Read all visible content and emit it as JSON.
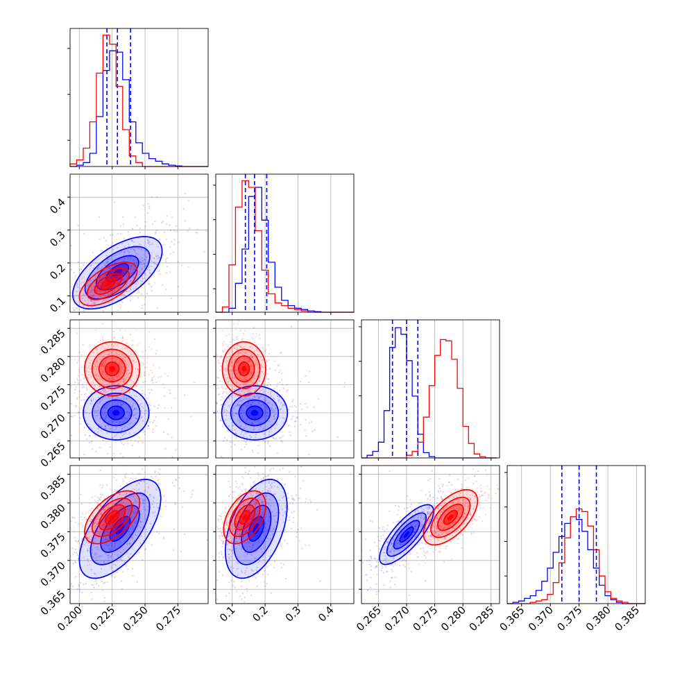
{
  "chart_data": {
    "type": "corner",
    "grid": true,
    "series": [
      {
        "color": "#0000ff",
        "mean": [
          0.229,
          0.17,
          0.27,
          0.375
        ]
      },
      {
        "color": "#ff0000",
        "mean": [
          0.224,
          0.14,
          0.278,
          0.378
        ]
      }
    ],
    "params": [
      {
        "range": [
          0.193,
          0.298
        ],
        "ticks": [
          0.2,
          0.225,
          0.25,
          0.275
        ],
        "tick_labels": [
          "0.200",
          "0.225",
          "0.250",
          "0.275"
        ]
      },
      {
        "range": [
          0.05,
          0.47
        ],
        "ticks": [
          0.1,
          0.2,
          0.3,
          0.4
        ],
        "tick_labels": [
          "0.1",
          "0.2",
          "0.3",
          "0.4"
        ]
      },
      {
        "range": [
          0.262,
          0.2865
        ],
        "ticks": [
          0.265,
          0.27,
          0.275,
          0.28,
          0.285
        ],
        "tick_labels": [
          "0.265",
          "0.270",
          "0.275",
          "0.280",
          "0.285"
        ]
      },
      {
        "range": [
          0.3625,
          0.3865
        ],
        "ticks": [
          0.365,
          0.37,
          0.375,
          0.38,
          0.385
        ],
        "tick_labels": [
          "0.365",
          "0.370",
          "0.375",
          "0.380",
          "0.385"
        ]
      }
    ],
    "quantiles": [
      [
        0.221,
        0.229,
        0.239
      ],
      [
        0.14,
        0.168,
        0.205
      ],
      [
        0.2675,
        0.27,
        0.272
      ],
      [
        0.372,
        0.375,
        0.378
      ]
    ],
    "histograms": [
      {
        "bins_x": [
          0.193,
          0.198,
          0.203,
          0.208,
          0.213,
          0.218,
          0.223,
          0.228,
          0.233,
          0.238,
          0.243,
          0.248,
          0.253,
          0.258,
          0.263,
          0.268,
          0.273,
          0.278,
          0.283,
          0.288,
          0.293,
          0.298
        ],
        "blue": [
          0.0,
          0.01,
          0.03,
          0.1,
          0.38,
          0.73,
          0.88,
          0.87,
          0.66,
          0.34,
          0.18,
          0.1,
          0.06,
          0.04,
          0.02,
          0.01,
          0.005,
          0.0,
          0.0,
          0.0,
          0.0
        ],
        "red": [
          0.02,
          0.05,
          0.14,
          0.34,
          0.71,
          1.0,
          0.93,
          0.61,
          0.28,
          0.08,
          0.03,
          0.0,
          0.0,
          0.0,
          0.0,
          0.0,
          0.0,
          0.0,
          0.0,
          0.0,
          0.0
        ]
      },
      {
        "bins_x": [
          0.05,
          0.07,
          0.09,
          0.11,
          0.13,
          0.15,
          0.17,
          0.19,
          0.21,
          0.23,
          0.25,
          0.27,
          0.29,
          0.31,
          0.33,
          0.35,
          0.37,
          0.39,
          0.41,
          0.43,
          0.45,
          0.47
        ],
        "blue": [
          0.0,
          0.0,
          0.03,
          0.22,
          0.48,
          0.88,
          0.95,
          0.7,
          0.38,
          0.19,
          0.09,
          0.05,
          0.03,
          0.02,
          0.01,
          0.005,
          0.0,
          0.0,
          0.0,
          0.0,
          0.0
        ],
        "red": [
          0.0,
          0.04,
          0.36,
          0.8,
          1.0,
          0.95,
          0.62,
          0.32,
          0.14,
          0.07,
          0.05,
          0.03,
          0.02,
          0.01,
          0.0,
          0.0,
          0.0,
          0.0,
          0.0,
          0.0,
          0.0
        ]
      },
      {
        "bins_x": [
          0.262,
          0.263,
          0.264,
          0.265,
          0.266,
          0.267,
          0.268,
          0.269,
          0.27,
          0.271,
          0.272,
          0.273,
          0.274,
          0.275,
          0.276,
          0.277,
          0.278,
          0.279,
          0.28,
          0.281,
          0.282,
          0.283,
          0.284,
          0.285,
          0.286
        ],
        "blue": [
          0.0,
          0.02,
          0.05,
          0.12,
          0.36,
          0.84,
          0.99,
          0.94,
          0.74,
          0.47,
          0.18,
          0.04,
          0.01,
          0.0,
          0.0,
          0.0,
          0.0,
          0.0,
          0.0,
          0.0,
          0.0,
          0.0,
          0.0,
          0.0
        ],
        "red": [
          0.0,
          0.0,
          0.0,
          0.0,
          0.0,
          0.0,
          0.0,
          0.0,
          0.02,
          0.05,
          0.12,
          0.31,
          0.55,
          0.78,
          0.9,
          0.89,
          0.75,
          0.53,
          0.24,
          0.11,
          0.03,
          0.01,
          0.0,
          0.0
        ]
      },
      {
        "bins_x": [
          0.3625,
          0.3635,
          0.3645,
          0.3655,
          0.3665,
          0.3675,
          0.3685,
          0.3695,
          0.3705,
          0.3715,
          0.3725,
          0.3735,
          0.3745,
          0.3755,
          0.3765,
          0.3775,
          0.3785,
          0.3795,
          0.3805,
          0.3815,
          0.3825,
          0.3835,
          0.3845,
          0.3855,
          0.3865
        ],
        "blue": [
          0.0,
          0.01,
          0.02,
          0.04,
          0.06,
          0.1,
          0.17,
          0.27,
          0.39,
          0.51,
          0.61,
          0.66,
          0.64,
          0.55,
          0.41,
          0.27,
          0.14,
          0.06,
          0.03,
          0.01,
          0.0,
          0.0,
          0.0,
          0.0
        ],
        "red": [
          0.0,
          0.0,
          0.0,
          0.0,
          0.01,
          0.02,
          0.03,
          0.07,
          0.16,
          0.31,
          0.5,
          0.66,
          0.72,
          0.7,
          0.59,
          0.41,
          0.21,
          0.09,
          0.04,
          0.02,
          0.01,
          0.0,
          0.0,
          0.0
        ]
      }
    ],
    "contours": [
      {
        "row": 1,
        "col": 0,
        "blue": {
          "c": [
            0.229,
            0.17
          ],
          "s": [
            0.017,
            0.055
          ],
          "rho": 0.6
        },
        "red": {
          "c": [
            0.222,
            0.136
          ],
          "s": [
            0.011,
            0.033
          ],
          "rho": 0.6
        }
      },
      {
        "row": 2,
        "col": 0,
        "blue": {
          "c": [
            0.228,
            0.27
          ],
          "s": [
            0.0125,
            0.0024
          ],
          "rho": 0.0
        },
        "red": {
          "c": [
            0.225,
            0.2778
          ],
          "s": [
            0.0105,
            0.0024
          ],
          "rho": 0.0
        }
      },
      {
        "row": 2,
        "col": 1,
        "blue": {
          "c": [
            0.168,
            0.27
          ],
          "s": [
            0.05,
            0.0024
          ],
          "rho": 0.0
        },
        "red": {
          "c": [
            0.136,
            0.2778
          ],
          "s": [
            0.033,
            0.0024
          ],
          "rho": 0.0
        }
      },
      {
        "row": 3,
        "col": 0,
        "blue": {
          "c": [
            0.231,
            0.3755
          ],
          "s": [
            0.0155,
            0.0043
          ],
          "rho": 0.62
        },
        "red": {
          "c": [
            0.225,
            0.3775
          ],
          "s": [
            0.0105,
            0.0023
          ],
          "rho": 0.55
        }
      },
      {
        "row": 3,
        "col": 1,
        "blue": {
          "c": [
            0.173,
            0.3755
          ],
          "s": [
            0.047,
            0.0043
          ],
          "rho": 0.45
        },
        "red": {
          "c": [
            0.138,
            0.3775
          ],
          "s": [
            0.032,
            0.0023
          ],
          "rho": 0.45
        }
      },
      {
        "row": 3,
        "col": 2,
        "blue": {
          "c": [
            0.27,
            0.3745
          ],
          "s": [
            0.0024,
            0.0026
          ],
          "rho": 0.78
        },
        "red": {
          "c": [
            0.2778,
            0.3775
          ],
          "s": [
            0.0024,
            0.0024
          ],
          "rho": 0.6
        }
      }
    ]
  }
}
